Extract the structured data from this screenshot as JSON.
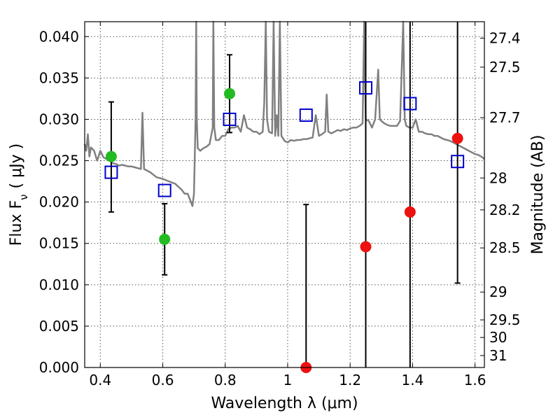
{
  "chart_data": {
    "type": "scatter",
    "xlabel": "Wavelength  λ (μm)",
    "ylabel": "Flux  F",
    "ylabel_sub": "ν",
    "ylabel_unit": "( μJy )",
    "y2label": "Magnitude (AB)",
    "xlim": [
      0.35,
      1.63
    ],
    "ylim": [
      0.0,
      0.0418
    ],
    "grid": true,
    "x_ticks": [
      0.4,
      0.6,
      0.8,
      1.0,
      1.2,
      1.4,
      1.6
    ],
    "x_tick_labels": [
      "0.4",
      "0.6",
      "0.8",
      "1",
      "1.2",
      "1.4",
      "1.6"
    ],
    "y_ticks": [
      0.0,
      0.005,
      0.01,
      0.015,
      0.02,
      0.025,
      0.03,
      0.035,
      0.04
    ],
    "y_tick_labels": [
      "0.000",
      "0.005",
      "0.010",
      "0.015",
      "0.020",
      "0.025",
      "0.030",
      "0.035",
      "0.040"
    ],
    "y2_ticks": [
      27.4,
      27.5,
      27.7,
      28,
      28.2,
      28.5,
      29,
      29.5,
      30,
      31
    ],
    "y2_tick_labels": [
      "27.4",
      "27.5",
      "27.7",
      "28",
      "28.2",
      "28.5",
      "29",
      "29.5",
      "30",
      "31"
    ],
    "colors": {
      "template": "#808080",
      "green": "#22bb22",
      "red": "#ee1111",
      "model": "#0000cc",
      "errorbar": "#000000"
    },
    "series": [
      {
        "kind": "line",
        "points": [
          [
            0.35,
            0.027
          ],
          [
            0.355,
            0.0262
          ],
          [
            0.36,
            0.0282
          ],
          [
            0.365,
            0.0255
          ],
          [
            0.37,
            0.0266
          ],
          [
            0.38,
            0.0262
          ],
          [
            0.39,
            0.025
          ],
          [
            0.4,
            0.0262
          ],
          [
            0.41,
            0.0254
          ],
          [
            0.42,
            0.0252
          ],
          [
            0.43,
            0.025
          ],
          [
            0.44,
            0.0247
          ],
          [
            0.45,
            0.0246
          ],
          [
            0.46,
            0.0244
          ],
          [
            0.47,
            0.0245
          ],
          [
            0.48,
            0.0244
          ],
          [
            0.49,
            0.0243
          ],
          [
            0.5,
            0.0243
          ],
          [
            0.51,
            0.0242
          ],
          [
            0.52,
            0.0241
          ],
          [
            0.53,
            0.024
          ],
          [
            0.535,
            0.0308
          ],
          [
            0.54,
            0.024
          ],
          [
            0.56,
            0.0236
          ],
          [
            0.58,
            0.023
          ],
          [
            0.6,
            0.0228
          ],
          [
            0.62,
            0.0225
          ],
          [
            0.64,
            0.0222
          ],
          [
            0.66,
            0.0215
          ],
          [
            0.67,
            0.021
          ],
          [
            0.68,
            0.021
          ],
          [
            0.69,
            0.02
          ],
          [
            0.695,
            0.0195
          ],
          [
            0.7,
            0.021
          ],
          [
            0.705,
            0.03
          ],
          [
            0.707,
            0.0418
          ],
          [
            0.709,
            0.03
          ],
          [
            0.712,
            0.0265
          ],
          [
            0.72,
            0.0262
          ],
          [
            0.73,
            0.0265
          ],
          [
            0.74,
            0.0267
          ],
          [
            0.75,
            0.027
          ],
          [
            0.76,
            0.029
          ],
          [
            0.762,
            0.0418
          ],
          [
            0.765,
            0.029
          ],
          [
            0.77,
            0.0275
          ],
          [
            0.78,
            0.0275
          ],
          [
            0.79,
            0.028
          ],
          [
            0.8,
            0.028
          ],
          [
            0.81,
            0.0288
          ],
          [
            0.82,
            0.029
          ],
          [
            0.83,
            0.029
          ],
          [
            0.84,
            0.0292
          ],
          [
            0.85,
            0.0285
          ],
          [
            0.86,
            0.0305
          ],
          [
            0.87,
            0.029
          ],
          [
            0.88,
            0.0288
          ],
          [
            0.89,
            0.0285
          ],
          [
            0.9,
            0.0285
          ],
          [
            0.91,
            0.0282
          ],
          [
            0.92,
            0.0285
          ],
          [
            0.925,
            0.032
          ],
          [
            0.93,
            0.0418
          ],
          [
            0.934,
            0.03
          ],
          [
            0.94,
            0.0285
          ],
          [
            0.95,
            0.0283
          ],
          [
            0.955,
            0.0418
          ],
          [
            0.96,
            0.028
          ],
          [
            0.965,
            0.0305
          ],
          [
            0.97,
            0.028
          ],
          [
            0.975,
            0.0418
          ],
          [
            0.98,
            0.028
          ],
          [
            0.99,
            0.0274
          ],
          [
            1.0,
            0.0272
          ],
          [
            1.01,
            0.0275
          ],
          [
            1.02,
            0.0274
          ],
          [
            1.03,
            0.0275
          ],
          [
            1.04,
            0.0275
          ],
          [
            1.05,
            0.0276
          ],
          [
            1.06,
            0.0276
          ],
          [
            1.07,
            0.0277
          ],
          [
            1.08,
            0.0278
          ],
          [
            1.09,
            0.0305
          ],
          [
            1.1,
            0.028
          ],
          [
            1.11,
            0.0282
          ],
          [
            1.12,
            0.0285
          ],
          [
            1.125,
            0.033
          ],
          [
            1.13,
            0.0285
          ],
          [
            1.14,
            0.0283
          ],
          [
            1.15,
            0.0285
          ],
          [
            1.16,
            0.0287
          ],
          [
            1.17,
            0.0286
          ],
          [
            1.18,
            0.0288
          ],
          [
            1.19,
            0.0287
          ],
          [
            1.2,
            0.0289
          ],
          [
            1.21,
            0.029
          ],
          [
            1.22,
            0.029
          ],
          [
            1.23,
            0.0292
          ],
          [
            1.24,
            0.0295
          ],
          [
            1.245,
            0.0418
          ],
          [
            1.25,
            0.03
          ],
          [
            1.26,
            0.0298
          ],
          [
            1.27,
            0.029
          ],
          [
            1.28,
            0.03
          ],
          [
            1.29,
            0.036
          ],
          [
            1.295,
            0.03
          ],
          [
            1.3,
            0.0298
          ],
          [
            1.31,
            0.0295
          ],
          [
            1.32,
            0.0293
          ],
          [
            1.33,
            0.0292
          ],
          [
            1.34,
            0.0292
          ],
          [
            1.35,
            0.0292
          ],
          [
            1.36,
            0.0298
          ],
          [
            1.37,
            0.0418
          ],
          [
            1.375,
            0.03
          ],
          [
            1.38,
            0.0292
          ],
          [
            1.39,
            0.029
          ],
          [
            1.4,
            0.029
          ],
          [
            1.41,
            0.03
          ],
          [
            1.42,
            0.0285
          ],
          [
            1.43,
            0.0285
          ],
          [
            1.44,
            0.0283
          ],
          [
            1.45,
            0.0282
          ],
          [
            1.46,
            0.0282
          ],
          [
            1.47,
            0.028
          ],
          [
            1.48,
            0.028
          ],
          [
            1.49,
            0.0278
          ],
          [
            1.5,
            0.0276
          ],
          [
            1.51,
            0.0275
          ],
          [
            1.52,
            0.0274
          ],
          [
            1.53,
            0.0272
          ],
          [
            1.54,
            0.027
          ],
          [
            1.55,
            0.0268
          ],
          [
            1.56,
            0.0266
          ],
          [
            1.57,
            0.0264
          ],
          [
            1.58,
            0.0262
          ],
          [
            1.59,
            0.026
          ],
          [
            1.6,
            0.0258
          ],
          [
            1.61,
            0.0257
          ],
          [
            1.62,
            0.0255
          ],
          [
            1.63,
            0.0252
          ]
        ]
      },
      {
        "kind": "points",
        "marker": "circle",
        "color": "green",
        "points": [
          {
            "x": 0.435,
            "y": 0.0255,
            "ylo": 0.0188,
            "yhi": 0.0321
          },
          {
            "x": 0.606,
            "y": 0.0155,
            "ylo": 0.0112,
            "yhi": 0.0198
          },
          {
            "x": 0.814,
            "y": 0.0331,
            "ylo": 0.0284,
            "yhi": 0.0378
          }
        ]
      },
      {
        "kind": "points",
        "marker": "circle",
        "color": "red",
        "points": [
          {
            "x": 1.059,
            "y": 0.0,
            "ylo": 0.0,
            "yhi": 0.0197
          },
          {
            "x": 1.25,
            "y": 0.0146,
            "ylo": 0.0,
            "yhi": 0.0418
          },
          {
            "x": 1.392,
            "y": 0.0188,
            "ylo": 0.0,
            "yhi": 0.0418
          },
          {
            "x": 1.544,
            "y": 0.0277,
            "ylo": 0.0102,
            "yhi": 0.0418
          }
        ]
      },
      {
        "kind": "points",
        "marker": "square",
        "color": "model",
        "points": [
          {
            "x": 0.435,
            "y": 0.0236
          },
          {
            "x": 0.606,
            "y": 0.0214
          },
          {
            "x": 0.814,
            "y": 0.03
          },
          {
            "x": 1.059,
            "y": 0.0305
          },
          {
            "x": 1.25,
            "y": 0.0338
          },
          {
            "x": 1.392,
            "y": 0.0319
          },
          {
            "x": 1.544,
            "y": 0.0249
          }
        ]
      }
    ]
  }
}
